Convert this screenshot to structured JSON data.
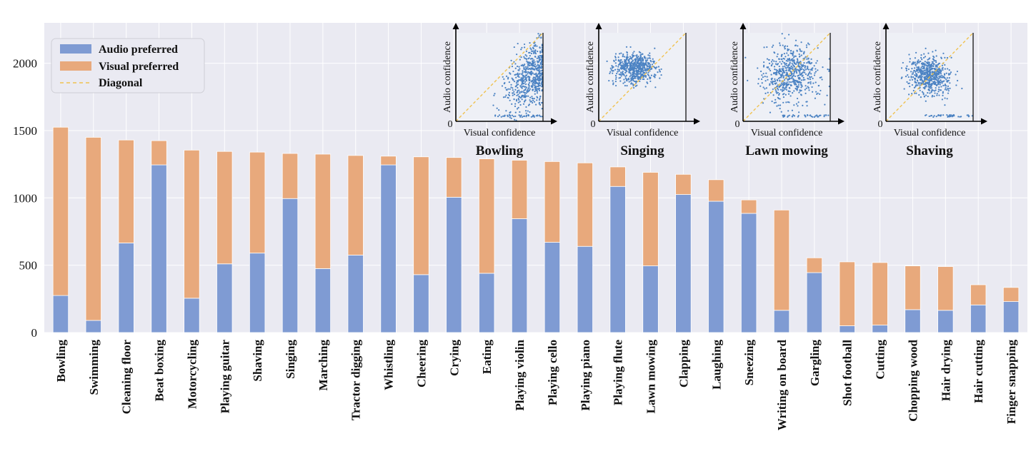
{
  "colors": {
    "audio": "#7f9bd3",
    "visual": "#e8a97c",
    "diagonal": "#f0c24f",
    "background": "#eaeaf2",
    "grid": "#ffffff",
    "scatter": "#4c83c3"
  },
  "chart_data": [
    {
      "type": "bar",
      "stacked": true,
      "title": "",
      "xlabel": "",
      "ylabel": "",
      "ylim": [
        0,
        2300
      ],
      "yticks": [
        0,
        500,
        1000,
        1500,
        2000
      ],
      "grid": true,
      "legend_position": "top-left",
      "categories": [
        "Bowling",
        "Swimming",
        "Cleaning floor",
        "Beat boxing",
        "Motorcycling",
        "Playing guitar",
        "Shaving",
        "Singing",
        "Marching",
        "Tractor digging",
        "Whistling",
        "Cheering",
        "Crying",
        "Eating",
        "Playing violin",
        "Playing cello",
        "Playing piano",
        "Playing flute",
        "Lawn mowing",
        "Clapping",
        "Laughing",
        "Sneezing",
        "Writing on board",
        "Gargling",
        "Shot football",
        "Cutting",
        "Chopping wood",
        "Hair drying",
        "Hair cutting",
        "Finger snapping"
      ],
      "series": [
        {
          "name": "Audio preferred",
          "values": [
            275,
            90,
            665,
            1245,
            255,
            510,
            590,
            995,
            475,
            575,
            1245,
            430,
            1005,
            440,
            845,
            670,
            640,
            1085,
            495,
            1025,
            975,
            885,
            165,
            445,
            50,
            55,
            170,
            165,
            205,
            230
          ]
        },
        {
          "name": "Visual preferred",
          "values": [
            1250,
            1360,
            765,
            180,
            1100,
            835,
            750,
            335,
            850,
            740,
            65,
            875,
            295,
            850,
            435,
            600,
            620,
            145,
            695,
            150,
            160,
            100,
            745,
            110,
            475,
            465,
            325,
            325,
            150,
            105
          ]
        }
      ],
      "legend": [
        "Audio preferred",
        "Visual preferred",
        "Diagonal"
      ]
    },
    {
      "type": "scatter",
      "title": "Bowling",
      "xlabel": "Visual confidence",
      "ylabel": "Audio confidence",
      "origin_label": "0",
      "distribution": "skewed toward high audio and visual confidence, dense near the right edge"
    },
    {
      "type": "scatter",
      "title": "Singing",
      "xlabel": "Visual confidence",
      "ylabel": "Audio confidence",
      "origin_label": "0",
      "distribution": "dense cluster above the diagonal around mid-high audio confidence"
    },
    {
      "type": "scatter",
      "title": "Lawn mowing",
      "xlabel": "Visual confidence",
      "ylabel": "Audio confidence",
      "origin_label": "0",
      "distribution": "spread broadly, concentrated toward the upper right"
    },
    {
      "type": "scatter",
      "title": "Shaving",
      "xlabel": "Visual confidence",
      "ylabel": "Audio confidence",
      "origin_label": "0",
      "distribution": "centered cloud around the middle of both axes"
    }
  ]
}
